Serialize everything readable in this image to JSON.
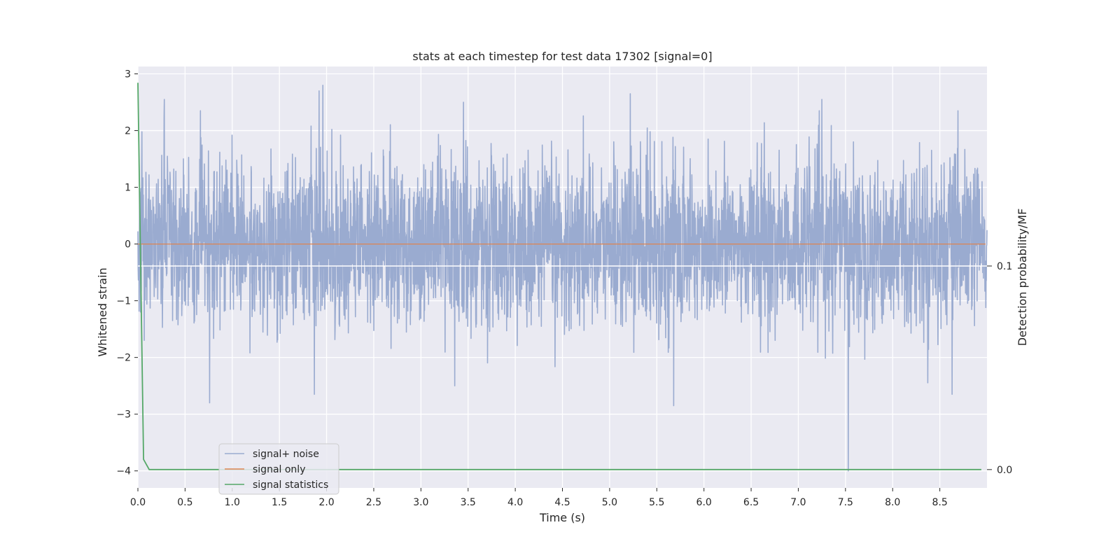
{
  "chart_data": {
    "type": "line",
    "title": "stats at each timestep for test data 17302 [signal=0]",
    "xlabel": "Time (s)",
    "ylabel": "Whitened strain",
    "ylabel_right": "Detection probability/MF",
    "xlim": [
      0,
      9.0
    ],
    "ylim": [
      -4.3,
      3.13
    ],
    "ylim_right": [
      -0.009,
      0.198
    ],
    "x_ticks": [
      0.0,
      0.5,
      1.0,
      1.5,
      2.0,
      2.5,
      3.0,
      3.5,
      4.0,
      4.5,
      5.0,
      5.5,
      6.0,
      6.5,
      7.0,
      7.5,
      8.0,
      8.5
    ],
    "x_tick_labels": [
      "0.0",
      "0.5",
      "1.0",
      "1.5",
      "2.0",
      "2.5",
      "3.0",
      "3.5",
      "4.0",
      "4.5",
      "5.0",
      "5.5",
      "6.0",
      "6.5",
      "7.0",
      "7.5",
      "8.0",
      "8.5"
    ],
    "y_ticks": [
      3,
      2,
      1,
      0,
      -1,
      -2,
      -3,
      -4
    ],
    "y_tick_labels": [
      "3",
      "2",
      "1",
      "0",
      "−1",
      "−2",
      "−3",
      "−4"
    ],
    "y_right_ticks": [
      0.1,
      0.0
    ],
    "y_right_tick_labels": [
      "0.1",
      "0.0"
    ],
    "grid": true,
    "legend_position": "lower-left",
    "colors": {
      "background": "#eaeaf2",
      "grid": "#ffffff",
      "noise": "#9aabd0",
      "signal": "#dd8452",
      "stats": "#55a868",
      "text": "#262626"
    },
    "series": [
      {
        "name": "signal+ noise",
        "axis": "left",
        "description_values": "whitened noise, roughly gaussian with std ~0.75, peaks up to ~2.8 and down to ~-4.0 at t≈7.53",
        "peaks": [
          [
            0.28,
            2.55
          ],
          [
            1.92,
            2.7
          ],
          [
            1.96,
            2.8
          ],
          [
            3.45,
            2.5
          ],
          [
            5.22,
            2.65
          ],
          [
            7.25,
            2.55
          ],
          [
            0.76,
            -2.8
          ],
          [
            1.87,
            -2.65
          ],
          [
            5.68,
            -2.85
          ],
          [
            7.53,
            -4.0
          ],
          [
            8.63,
            -2.65
          ]
        ]
      },
      {
        "name": "signal only",
        "axis": "left",
        "x": [
          0.0,
          9.0
        ],
        "y": [
          0.0,
          0.0
        ]
      },
      {
        "name": "signal statistics",
        "axis": "right",
        "x": [
          0.0,
          0.06,
          0.12,
          0.5,
          1.0,
          2.0,
          3.0,
          4.0,
          5.0,
          6.0,
          7.0,
          8.0,
          8.94
        ],
        "y": [
          0.19,
          0.005,
          0.0,
          0.0,
          0.0,
          0.0,
          0.0,
          0.0,
          0.0,
          0.0,
          0.0,
          0.0,
          0.0
        ]
      }
    ]
  }
}
